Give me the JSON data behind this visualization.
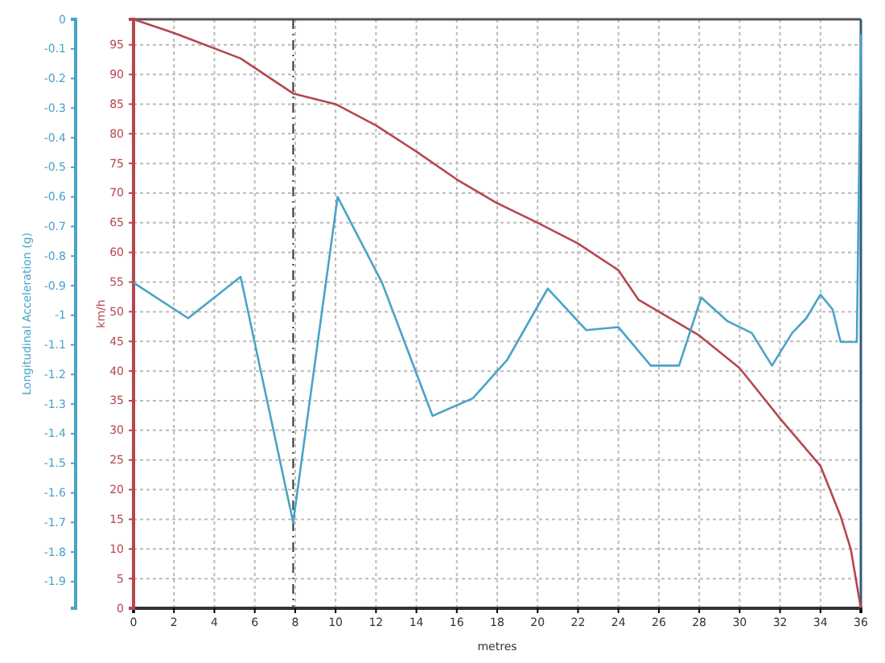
{
  "chart_data": {
    "type": "line",
    "xlabel": "metres",
    "ylabel": "km/h",
    "y2label": "Longitudinal Acceleration (g)",
    "xlim": [
      0,
      36
    ],
    "xticks": [
      0,
      2,
      4,
      6,
      8,
      10,
      12,
      14,
      16,
      18,
      20,
      22,
      24,
      26,
      28,
      30,
      32,
      34,
      36
    ],
    "ylim": [
      0,
      99.3
    ],
    "yticks": [
      0,
      5,
      10,
      15,
      20,
      25,
      30,
      35,
      40,
      45,
      50,
      55,
      60,
      65,
      70,
      75,
      80,
      85,
      90,
      95
    ],
    "y2lim": [
      -1.99,
      0
    ],
    "y2ticks": [
      0,
      -0.1,
      -0.2,
      -0.3,
      -0.4,
      -0.5,
      -0.6,
      -0.7,
      -0.8,
      -0.9,
      -1,
      -1.1,
      -1.2,
      -1.3,
      -1.4,
      -1.5,
      -1.6,
      -1.7,
      -1.8,
      -1.9
    ],
    "grid": true,
    "line_style": "solid",
    "ref_lines": [
      {
        "axis": "x",
        "value": 7.9,
        "label": null,
        "color": "#333333",
        "line_style": "dashed"
      }
    ],
    "series": [
      {
        "color": "#b5474f",
        "x": [
          0,
          2,
          5.3,
          7.9,
          10,
          12,
          14,
          16,
          18,
          20,
          22,
          24,
          25,
          26,
          28,
          30,
          32,
          34,
          35,
          35.5,
          36
        ],
        "values": [
          99.3,
          97,
          92.7,
          86.8,
          85,
          81.4,
          77,
          72.3,
          68.3,
          65,
          61.5,
          57,
          52,
          50,
          46,
          40.5,
          32,
          24,
          15.5,
          10,
          0
        ]
      },
      {
        "color": "#4aa3c8",
        "axis": "y2",
        "x": [
          0,
          2.7,
          5.3,
          7.9,
          10.1,
          12.3,
          14.8,
          16.8,
          18.5,
          20.5,
          22.4,
          24,
          25.6,
          27,
          28.1,
          29.4,
          30.6,
          31.6,
          32.6,
          33.3,
          34,
          34.6,
          35,
          35.5,
          35.8,
          36
        ],
        "values": [
          -0.89,
          -1.01,
          -0.87,
          -1.7,
          -0.6,
          -0.89,
          -1.34,
          -1.28,
          -1.15,
          -0.91,
          -1.05,
          -1.04,
          -1.17,
          -1.17,
          -0.94,
          -1.02,
          -1.06,
          -1.17,
          -1.06,
          -1.01,
          -0.93,
          -0.98,
          -1.09,
          -1.09,
          -1.09,
          -0.05
        ]
      }
    ]
  }
}
